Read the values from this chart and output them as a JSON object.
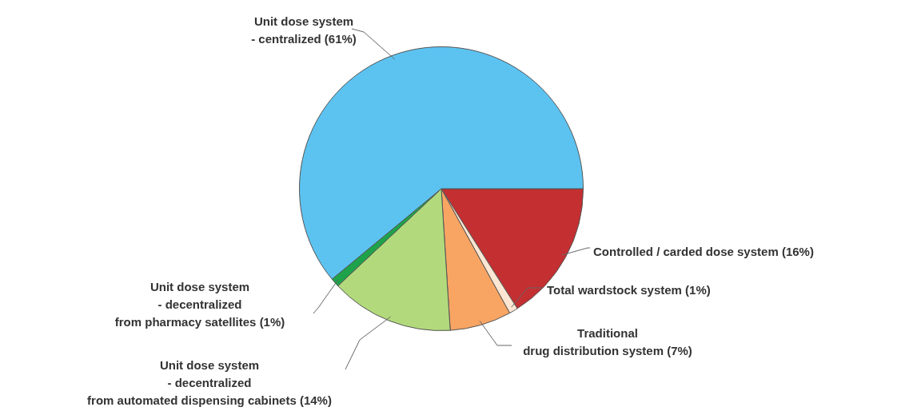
{
  "chart_data": {
    "type": "pie",
    "categories": [
      "Controlled / carded dose system (16%)",
      "Total wardstock system (1%)",
      "Traditional\ndrug distribution system (7%)",
      "Unit dose system\n- decentralized\nfrom automated dispensing cabinets (14%)",
      "Unit dose system\n- decentralized\nfrom pharmacy satellites (1%)",
      "Unit dose system\n- centralized (61%)"
    ],
    "values": [
      16,
      1,
      7,
      14,
      1,
      61
    ],
    "colors": [
      "#c42f31",
      "#fde6d2",
      "#f8a463",
      "#b2da7c",
      "#1ea34a",
      "#5cc3f1"
    ],
    "legend": false
  }
}
